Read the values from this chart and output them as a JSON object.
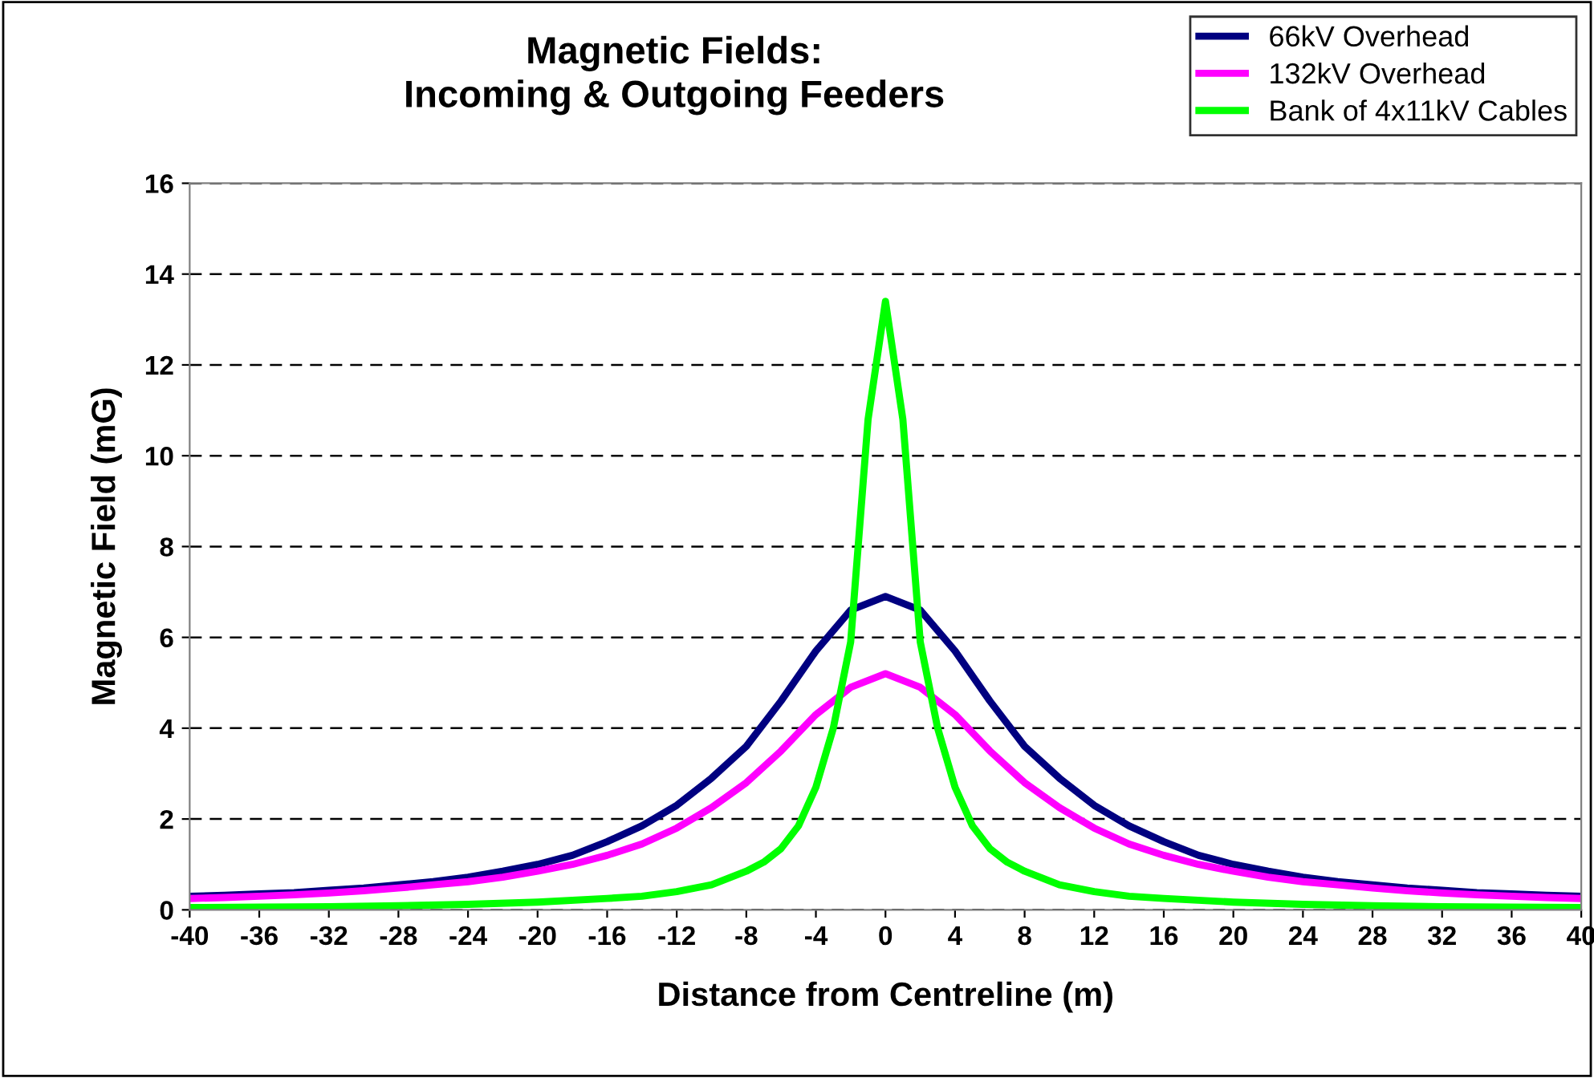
{
  "chart_data": {
    "type": "line",
    "title": "Magnetic Fields:\nIncoming & Outgoing Feeders",
    "xlabel": "Distance from Centreline (m)",
    "ylabel": "Magnetic Field (mG)",
    "x": [
      -40,
      -38,
      -36,
      -34,
      -32,
      -30,
      -28,
      -26,
      -24,
      -22,
      -20,
      -18,
      -16,
      -14,
      -12,
      -10,
      -8,
      -6,
      -4,
      -2,
      0,
      2,
      4,
      6,
      8,
      10,
      12,
      14,
      16,
      18,
      20,
      22,
      24,
      26,
      28,
      30,
      32,
      34,
      36,
      38,
      40
    ],
    "series": [
      {
        "name": "66kV Overhead",
        "color": "#000080",
        "values": [
          0.3,
          0.32,
          0.35,
          0.38,
          0.43,
          0.48,
          0.55,
          0.62,
          0.72,
          0.85,
          1.0,
          1.2,
          1.5,
          1.85,
          2.3,
          2.9,
          3.6,
          4.6,
          5.7,
          6.6,
          6.9,
          6.6,
          5.7,
          4.6,
          3.6,
          2.9,
          2.3,
          1.85,
          1.5,
          1.2,
          1.0,
          0.85,
          0.72,
          0.62,
          0.55,
          0.48,
          0.43,
          0.38,
          0.35,
          0.32,
          0.3
        ]
      },
      {
        "name": "132kV Overhead",
        "color": "#ff00ff",
        "values": [
          0.25,
          0.27,
          0.3,
          0.33,
          0.37,
          0.42,
          0.48,
          0.55,
          0.62,
          0.72,
          0.85,
          1.0,
          1.2,
          1.45,
          1.8,
          2.25,
          2.8,
          3.5,
          4.3,
          4.9,
          5.2,
          4.9,
          4.3,
          3.5,
          2.8,
          2.25,
          1.8,
          1.45,
          1.2,
          1.0,
          0.85,
          0.72,
          0.62,
          0.55,
          0.48,
          0.42,
          0.37,
          0.33,
          0.3,
          0.27,
          0.25
        ]
      },
      {
        "name": "Bank of 4x11kV Cables",
        "color": "#00ff00",
        "x": [
          -40,
          -36,
          -32,
          -28,
          -24,
          -20,
          -16,
          -14,
          -12,
          -10,
          -8,
          -7,
          -6,
          -5,
          -4,
          -3,
          -2,
          -1,
          0,
          1,
          2,
          3,
          4,
          5,
          6,
          7,
          8,
          10,
          12,
          14,
          16,
          20,
          24,
          28,
          32,
          36,
          40
        ],
        "values": [
          0.05,
          0.06,
          0.07,
          0.09,
          0.12,
          0.17,
          0.25,
          0.3,
          0.4,
          0.55,
          0.85,
          1.05,
          1.35,
          1.85,
          2.7,
          4.0,
          5.9,
          10.8,
          13.4,
          10.8,
          5.9,
          4.0,
          2.7,
          1.85,
          1.35,
          1.05,
          0.85,
          0.55,
          0.4,
          0.3,
          0.25,
          0.17,
          0.12,
          0.09,
          0.07,
          0.06,
          0.05
        ]
      }
    ],
    "xlim": [
      -40,
      40
    ],
    "xticks": [
      -40,
      -36,
      -32,
      -28,
      -24,
      -20,
      -16,
      -12,
      -8,
      -4,
      0,
      4,
      8,
      12,
      16,
      20,
      24,
      28,
      32,
      36,
      40
    ],
    "ylim": [
      0,
      16
    ],
    "yticks": [
      0,
      2,
      4,
      6,
      8,
      10,
      12,
      14,
      16
    ],
    "grid": "y",
    "legend": "top right",
    "marker": "none",
    "line_style": "solid"
  }
}
